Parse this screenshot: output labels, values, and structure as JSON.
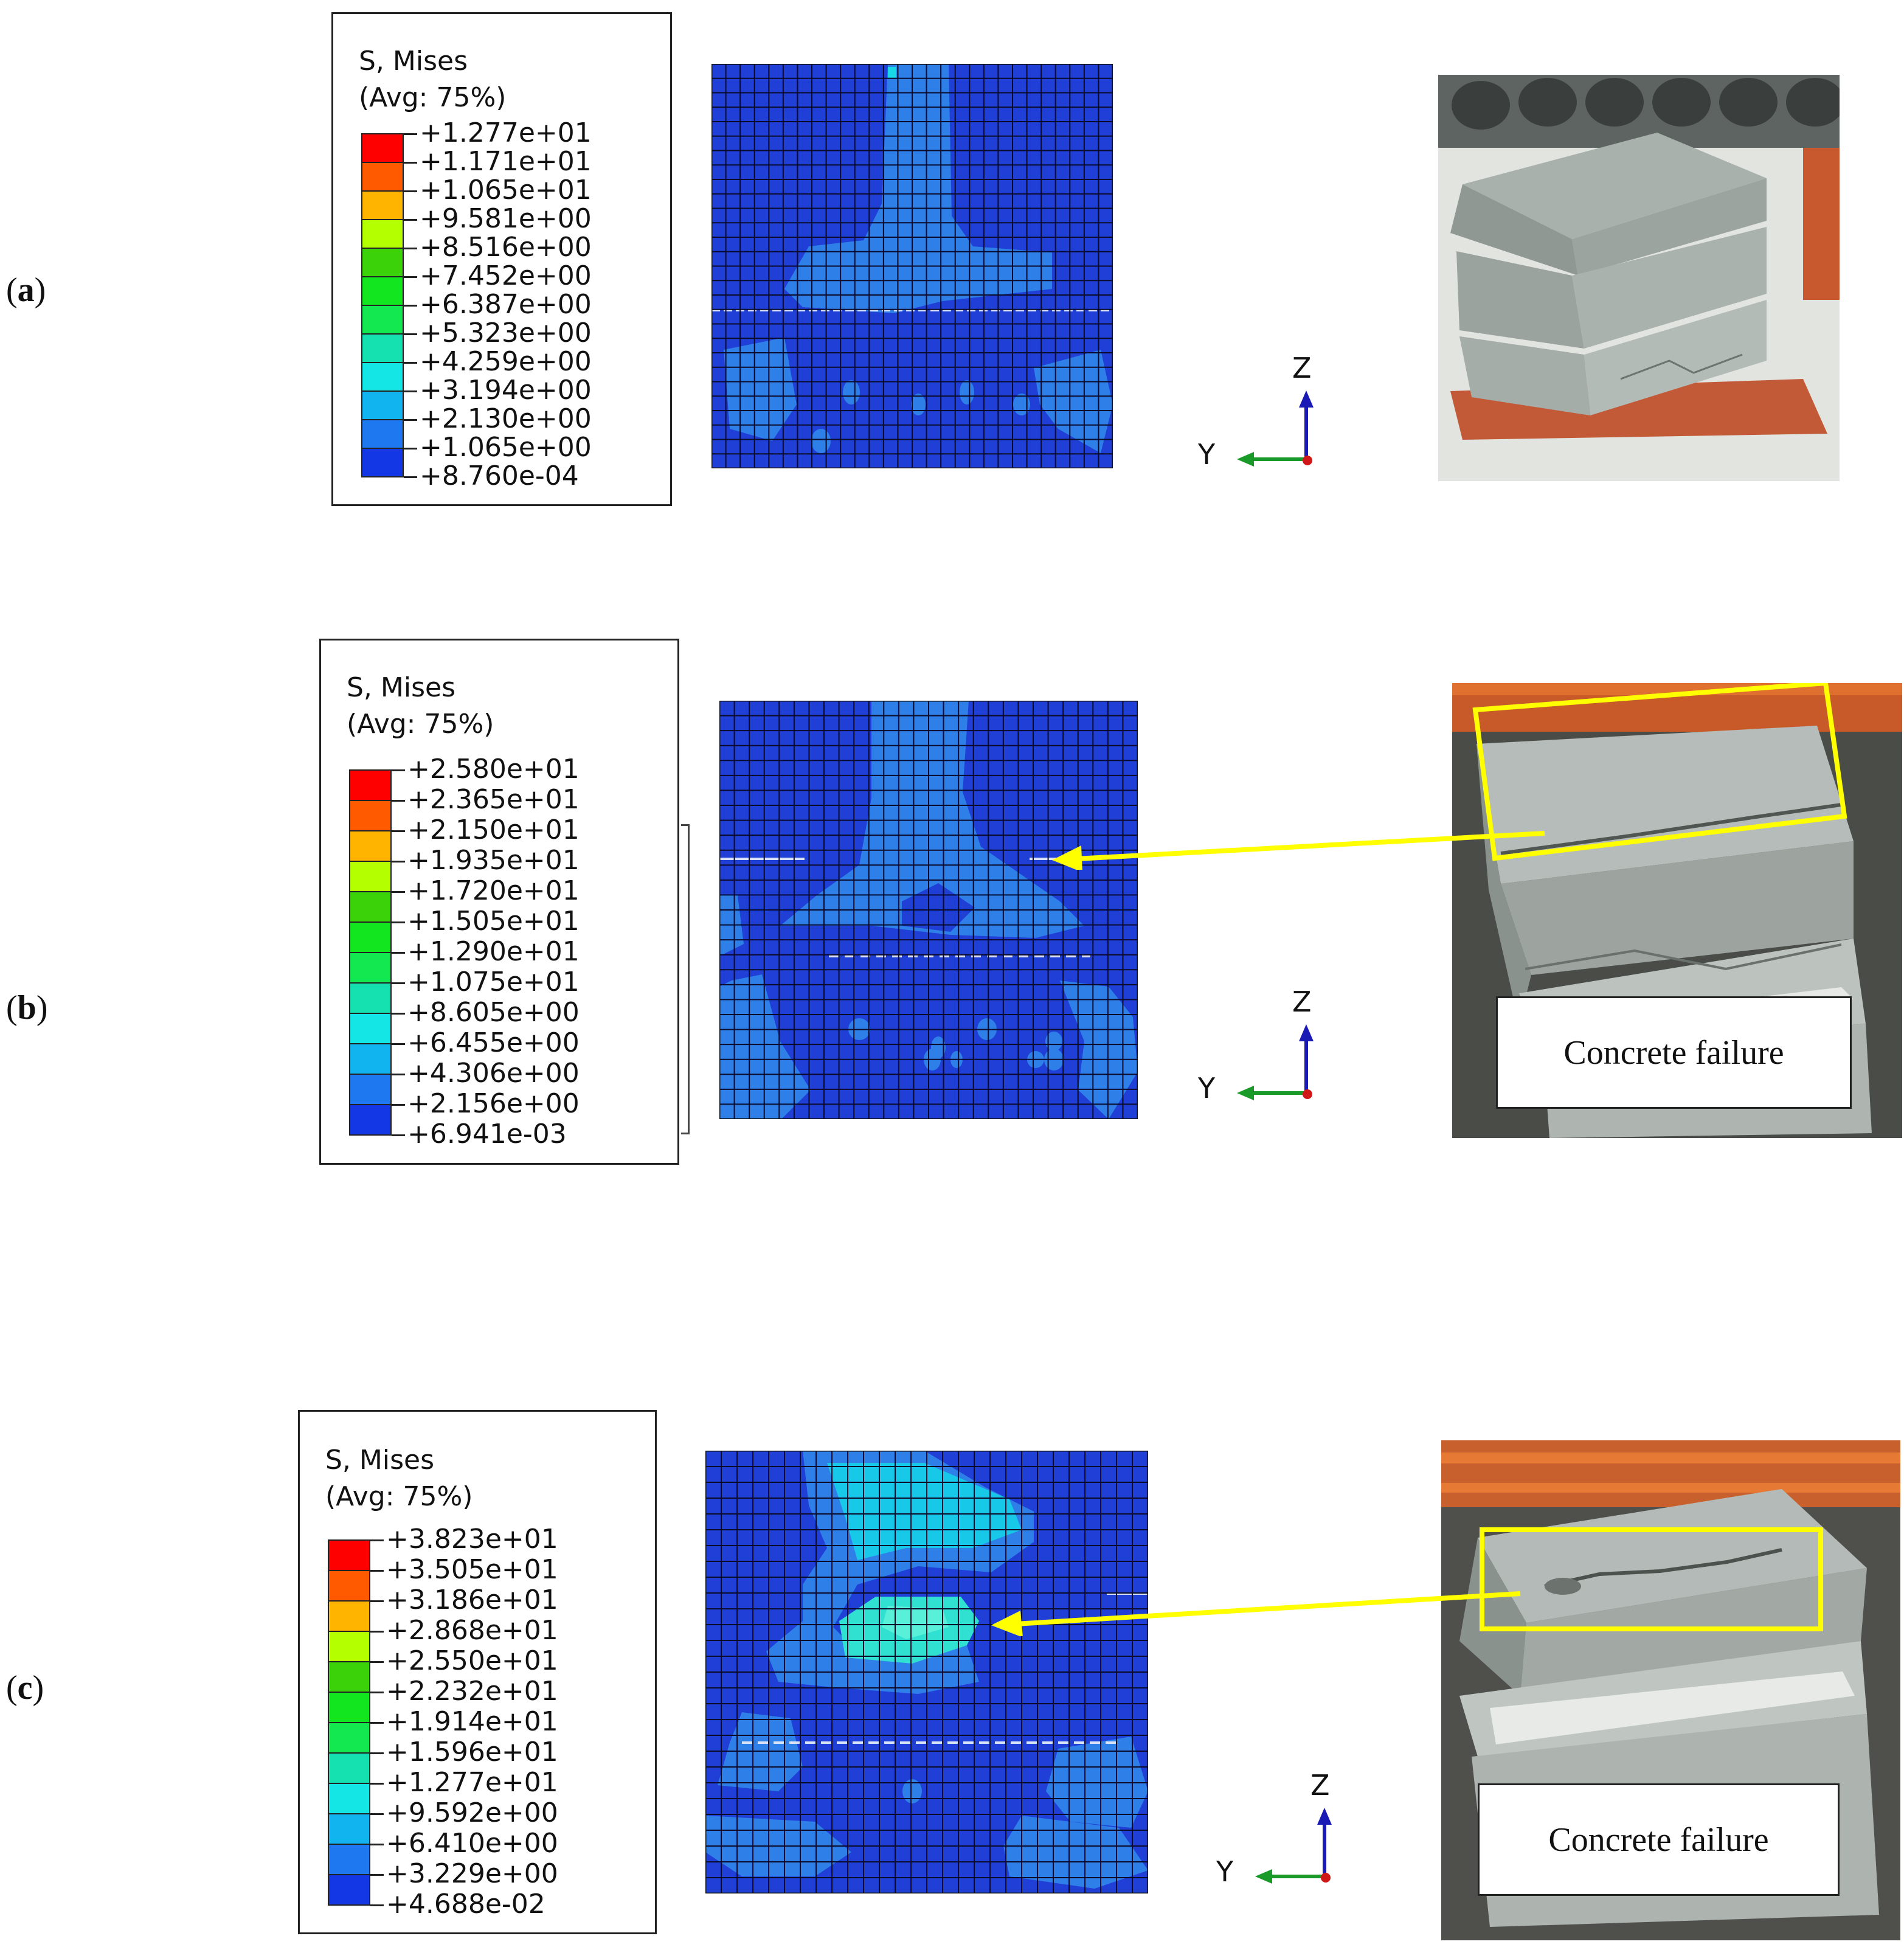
{
  "colors": {
    "scale": [
      "#ff0000",
      "#ff5a00",
      "#ffb400",
      "#b4ff00",
      "#3cd20a",
      "#12e61e",
      "#14e850",
      "#14e0b0",
      "#14e6e6",
      "#12b4f0",
      "#1e78f0",
      "#1437e6",
      "#3214e6"
    ],
    "mesh_base": "#1f3fd6",
    "mesh_light": "#2f7fe8",
    "highlight": "#ffff00",
    "arrow": "#ffff00"
  },
  "panels": [
    {
      "label": "a",
      "legend": {
        "title1": "S, Mises",
        "title2": "(Avg: 75%)",
        "values": [
          "+1.277e+01",
          "+1.171e+01",
          "+1.065e+01",
          "+9.581e+00",
          "+8.516e+00",
          "+7.452e+00",
          "+6.387e+00",
          "+5.323e+00",
          "+4.259e+00",
          "+3.194e+00",
          "+2.130e+00",
          "+1.065e+00",
          "+8.760e-04"
        ]
      },
      "axes": {
        "z": "Z",
        "y": "Y"
      },
      "caption": ""
    },
    {
      "label": "b",
      "legend": {
        "title1": "S, Mises",
        "title2": "(Avg: 75%)",
        "values": [
          "+2.580e+01",
          "+2.365e+01",
          "+2.150e+01",
          "+1.935e+01",
          "+1.720e+01",
          "+1.505e+01",
          "+1.290e+01",
          "+1.075e+01",
          "+8.605e+00",
          "+6.455e+00",
          "+4.306e+00",
          "+2.156e+00",
          "+6.941e-03"
        ]
      },
      "axes": {
        "z": "Z",
        "y": "Y"
      },
      "caption": "Concrete failure"
    },
    {
      "label": "c",
      "legend": {
        "title1": "S, Mises",
        "title2": "(Avg: 75%)",
        "values": [
          "+3.823e+01",
          "+3.505e+01",
          "+3.186e+01",
          "+2.868e+01",
          "+2.550e+01",
          "+2.232e+01",
          "+1.914e+01",
          "+1.596e+01",
          "+1.277e+01",
          "+9.592e+00",
          "+6.410e+00",
          "+3.229e+00",
          "+4.688e-02"
        ]
      },
      "axes": {
        "z": "Z",
        "y": "Y"
      },
      "caption": "Concrete failure"
    }
  ]
}
